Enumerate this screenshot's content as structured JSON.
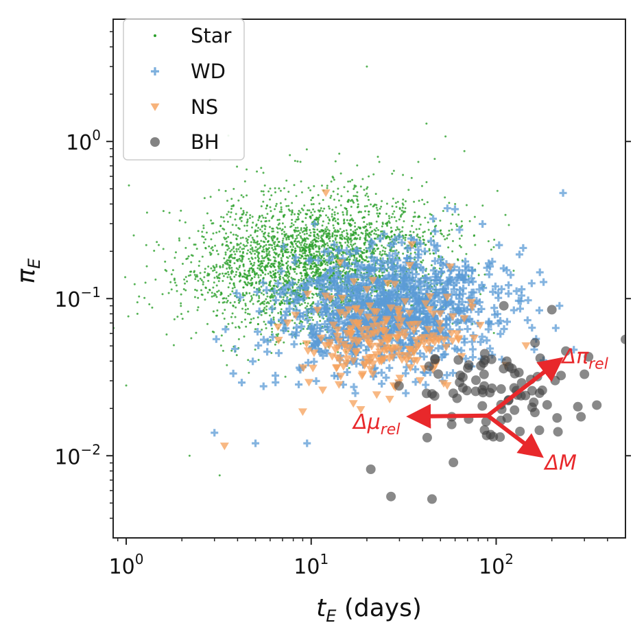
{
  "chart_data": {
    "type": "scatter",
    "title": "",
    "xlabel": "t_E (days)",
    "xlabel_main": "t",
    "xlabel_sub": "E",
    "xlabel_unit": "(days)",
    "ylabel": "π_E",
    "ylabel_main": "π",
    "ylabel_sub": "E",
    "x_scale": "log",
    "y_scale": "log",
    "xlim": [
      0.85,
      500
    ],
    "ylim": [
      0.003,
      6
    ],
    "grid": false,
    "legend_position": "top-left",
    "x_ticks": [
      {
        "value": 1,
        "base": "10",
        "exp": "0"
      },
      {
        "value": 10,
        "base": "10",
        "exp": "1"
      },
      {
        "value": 100,
        "base": "10",
        "exp": "2"
      }
    ],
    "y_ticks": [
      {
        "value": 1,
        "base": "10",
        "exp": "0"
      },
      {
        "value": 0.1,
        "base": "10",
        "exp": "−1"
      },
      {
        "value": 0.01,
        "base": "10",
        "exp": "−2"
      }
    ],
    "series": [
      {
        "name": "Star",
        "marker": "dot",
        "color": "#2ca02c",
        "count": 3200,
        "center": [
          10.5,
          0.17
        ],
        "spread": [
          0.34,
          0.22
        ],
        "corr": 0.1,
        "seed": 11,
        "points": [
          [
            20,
            3.0
          ],
          [
            42,
            1.3
          ],
          [
            28,
            0.65
          ],
          [
            1.0,
            0.028
          ],
          [
            1.15,
            0.08
          ],
          [
            2.2,
            0.01
          ],
          [
            3.2,
            0.0075
          ],
          [
            17,
            0.45
          ],
          [
            60,
            0.4
          ]
        ]
      },
      {
        "name": "WD",
        "marker": "plus",
        "color": "#5b9bd5",
        "count": 1100,
        "center": [
          25,
          0.085
        ],
        "spread": [
          0.3,
          0.19
        ],
        "corr": 0.08,
        "seed": 23,
        "points": [
          [
            230,
            0.47
          ],
          [
            3,
            0.014
          ],
          [
            5,
            0.012
          ],
          [
            220,
            0.09
          ],
          [
            210,
            0.065
          ],
          [
            140,
            0.21
          ],
          [
            9.5,
            0.012
          ]
        ]
      },
      {
        "name": "NS",
        "marker": "triangle-down",
        "color": "#f5a05a",
        "count": 210,
        "center": [
          26,
          0.055
        ],
        "spread": [
          0.22,
          0.16
        ],
        "corr": 0.05,
        "seed": 37,
        "points": [
          [
            12,
            0.47
          ],
          [
            3.4,
            0.0115
          ],
          [
            145,
            0.05
          ],
          [
            35,
            0.22
          ],
          [
            9,
            0.019
          ]
        ]
      },
      {
        "name": "BH",
        "marker": "circle",
        "color": "#404040",
        "count": 85,
        "center": [
          95,
          0.024
        ],
        "spread": [
          0.23,
          0.15
        ],
        "corr": -0.05,
        "seed": 53,
        "points": [
          [
            500,
            0.055
          ],
          [
            21,
            0.0082
          ],
          [
            27,
            0.0055
          ],
          [
            45,
            0.0053
          ],
          [
            200,
            0.085
          ],
          [
            350,
            0.021
          ],
          [
            110,
            0.09
          ],
          [
            300,
            0.033
          ]
        ]
      }
    ],
    "annotations": [
      {
        "label": "Δπ",
        "sub": "rel",
        "text": "Δπ_rel",
        "from": [
          90,
          0.018
        ],
        "to": [
          205,
          0.038
        ]
      },
      {
        "label": "Δμ",
        "sub": "rel",
        "text": "Δμ_rel",
        "from": [
          90,
          0.018
        ],
        "to": [
          38,
          0.0178
        ]
      },
      {
        "label": "ΔM",
        "sub": "",
        "text": "ΔM",
        "from": [
          90,
          0.018
        ],
        "to": [
          160,
          0.0108
        ]
      }
    ],
    "annotation_color": "#e8282b"
  }
}
